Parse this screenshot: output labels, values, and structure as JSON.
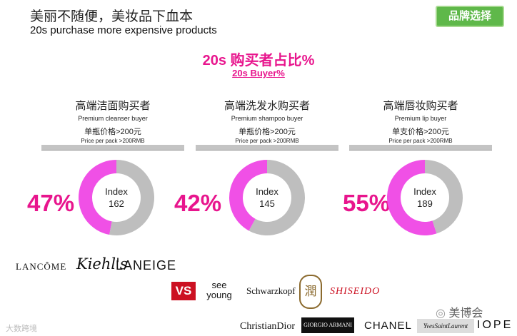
{
  "header": {
    "title_cn": "美丽不随便，美妆品下血本",
    "title_en": "20s purchase more expensive products",
    "brand_button": "品牌选择"
  },
  "chart_title_cn": "20s 购买者占比%",
  "chart_title_en": "20s Buyer%",
  "colors": {
    "accent": "#e8158d",
    "share": "#f050e6",
    "rest": "#bebebe",
    "button": "#5fb84a"
  },
  "chart_data": [
    {
      "type": "pie",
      "title": "高端洁面购买者",
      "subtitle": "Premium cleanser buyer",
      "price_cn": "单瓶价格>200元",
      "price_en": "Price per pack >200RMB",
      "percent_label": "47%",
      "center_label": "Index",
      "index_value": "162",
      "slices": [
        {
          "label": "20s",
          "value": 47
        },
        {
          "label": "other",
          "value": 53
        }
      ],
      "brands": [
        "LANCÔME",
        "Kiehl's",
        "LANEIGE"
      ]
    },
    {
      "type": "pie",
      "title": "高端洗发水购买者",
      "subtitle": "Premium shampoo buyer",
      "price_cn": "单瓶价格>200元",
      "price_en": "Price per pack >200RMB",
      "percent_label": "42%",
      "center_label": "Index",
      "index_value": "145",
      "slices": [
        {
          "label": "20s",
          "value": 42
        },
        {
          "label": "other",
          "value": 58
        }
      ],
      "brands": [
        "VS",
        "see young",
        "Schwarzkopf",
        "潤",
        "SHISEIDO"
      ]
    },
    {
      "type": "pie",
      "title": "高端唇妆购买者",
      "subtitle": "Premium lip buyer",
      "price_cn": "单支价格>200元",
      "price_en": "Price per pack >200RMB",
      "percent_label": "55%",
      "center_label": "Index",
      "index_value": "189",
      "slices": [
        {
          "label": "20s",
          "value": 55
        },
        {
          "label": "other",
          "value": 45
        }
      ],
      "brands": [
        "ChristianDior",
        "GIORGIO ARMANI",
        "CHANEL",
        "YvesSaintLaurent",
        "IOPE"
      ]
    }
  ],
  "footer": {
    "watermark": "大数跨境",
    "wechat": "美博会"
  }
}
